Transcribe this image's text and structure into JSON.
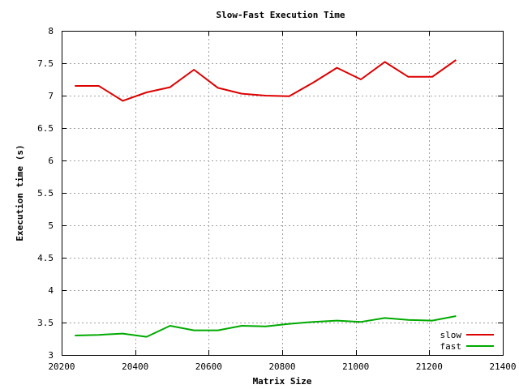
{
  "chart_data": {
    "type": "line",
    "title": "Slow-Fast Execution Time",
    "xlabel": "Matrix Size",
    "ylabel": "Execution time (s)",
    "xlim": [
      20200,
      21400
    ],
    "ylim": [
      3,
      8
    ],
    "xticks": [
      20200,
      20400,
      20600,
      20800,
      21000,
      21200,
      21400
    ],
    "yticks": [
      3,
      3.5,
      4,
      4.5,
      5,
      5.5,
      6,
      6.5,
      7,
      7.5,
      8
    ],
    "xtick_labels": [
      "20200",
      "20400",
      "20600",
      "20800",
      "21000",
      "21200",
      "21400"
    ],
    "ytick_labels": [
      "3",
      "3.5",
      "4",
      "4.5",
      "5",
      "5.5",
      "6",
      "6.5",
      "7",
      "7.5",
      "8"
    ],
    "grid": true,
    "legend_position": "bottom-right",
    "x": [
      20236,
      20301,
      20366,
      20431,
      20495,
      20560,
      20625,
      20690,
      20755,
      20819,
      20884,
      20949,
      21014,
      21079,
      21143,
      21208,
      21273
    ],
    "series": [
      {
        "name": "slow",
        "color": "#dd0000",
        "values": [
          7.15,
          7.15,
          6.92,
          7.05,
          7.13,
          7.4,
          7.12,
          7.03,
          7.0,
          6.99,
          7.2,
          7.43,
          7.25,
          7.52,
          7.29,
          7.29,
          7.55
        ]
      },
      {
        "name": "fast",
        "color": "#00aa00",
        "values": [
          3.3,
          3.31,
          3.33,
          3.28,
          3.45,
          3.38,
          3.38,
          3.45,
          3.44,
          3.48,
          3.51,
          3.53,
          3.51,
          3.57,
          3.54,
          3.53,
          3.6
        ]
      }
    ]
  }
}
